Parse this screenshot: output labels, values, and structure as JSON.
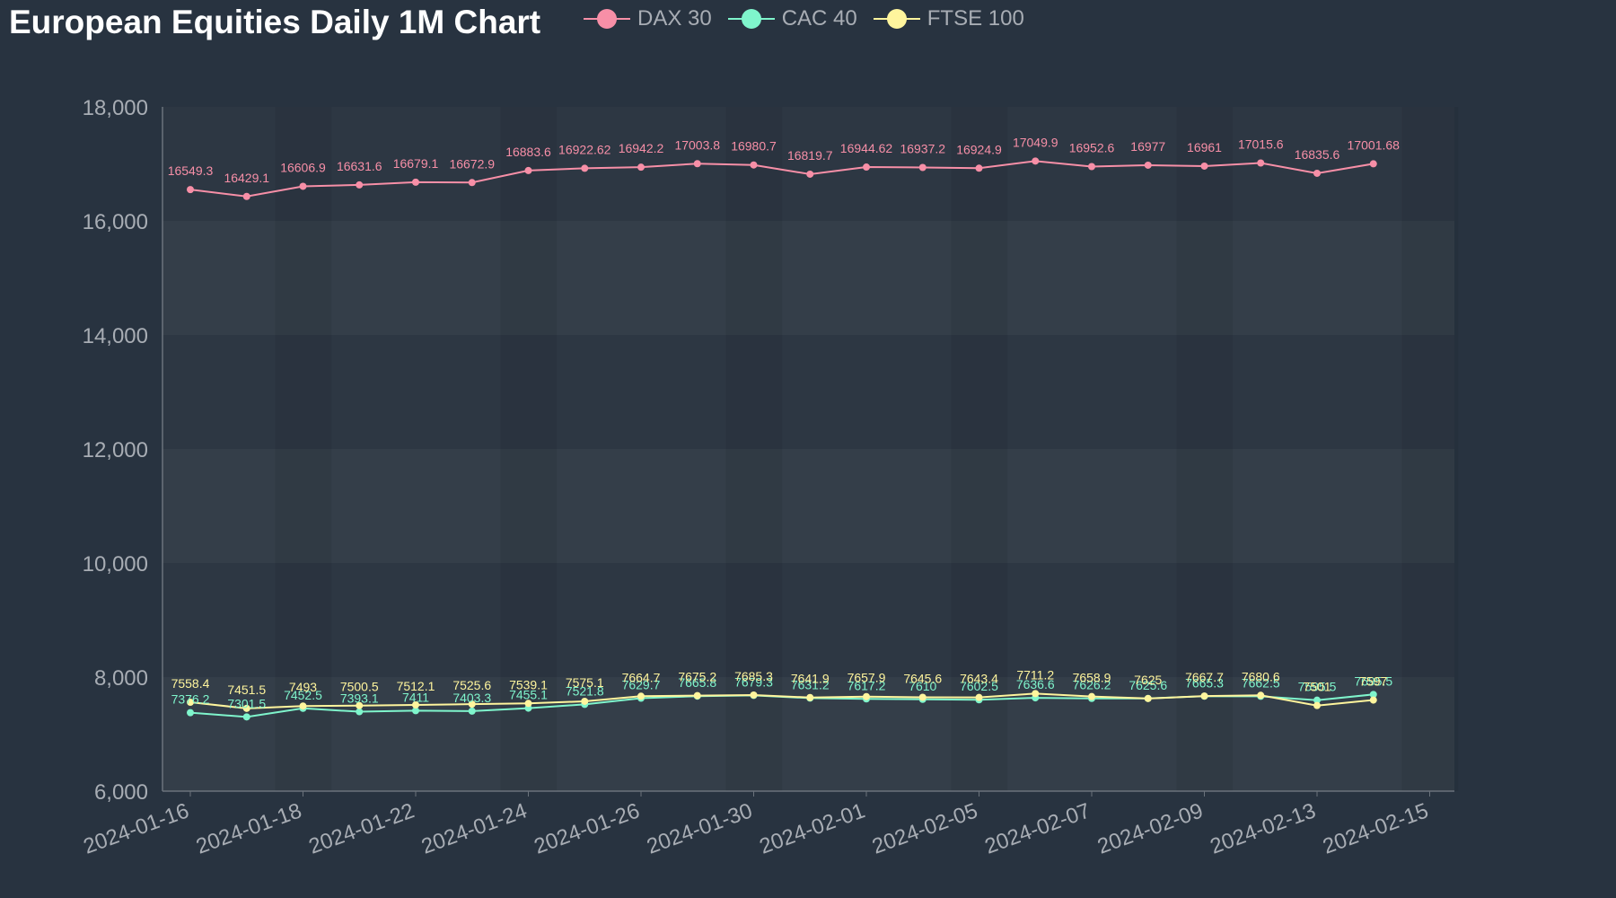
{
  "chart_data": {
    "type": "line",
    "title": "European Equities Daily 1M Chart",
    "xlabel": "",
    "ylabel": "",
    "ylim": [
      6000,
      18000
    ],
    "y_ticks": [
      6000,
      8000,
      10000,
      12000,
      14000,
      16000,
      18000
    ],
    "y_tick_labels": [
      "6,000",
      "8,000",
      "10,000",
      "12,000",
      "14,000",
      "16,000",
      "18,000"
    ],
    "x_tick_labels": [
      "2024-01-16",
      "2024-01-18",
      "2024-01-22",
      "2024-01-24",
      "2024-01-26",
      "2024-01-30",
      "2024-02-01",
      "2024-02-05",
      "2024-02-07",
      "2024-02-09",
      "2024-02-13",
      "2024-02-15"
    ],
    "x": [
      "2024-01-16",
      "2024-01-17",
      "2024-01-18",
      "2024-01-19",
      "2024-01-22",
      "2024-01-23",
      "2024-01-24",
      "2024-01-25",
      "2024-01-26",
      "2024-01-29",
      "2024-01-30",
      "2024-01-31",
      "2024-02-01",
      "2024-02-02",
      "2024-02-05",
      "2024-02-06",
      "2024-02-07",
      "2024-02-08",
      "2024-02-09",
      "2024-02-12",
      "2024-02-13",
      "2024-02-14"
    ],
    "legend_position": "top",
    "grid": true,
    "series": [
      {
        "name": "DAX 30",
        "color": "#f78fa7",
        "values": [
          16549.3,
          16429.1,
          16606.9,
          16631.6,
          16679.1,
          16672.9,
          16883.6,
          16922.62,
          16942.2,
          17003.8,
          16980.7,
          16819.7,
          16944.62,
          16937.2,
          16924.9,
          17049.9,
          16952.6,
          16977,
          16961,
          17015.6,
          16835.6,
          17001.68
        ]
      },
      {
        "name": "CAC 40",
        "color": "#7ff5cc",
        "values": [
          7376.2,
          7301.5,
          7452.5,
          7393.1,
          7411,
          7403.3,
          7455.1,
          7521.8,
          7629.7,
          7665.8,
          7679.3,
          7631.2,
          7617.2,
          7610,
          7602.5,
          7636.6,
          7626.2,
          7625.6,
          7665.3,
          7662.5,
          7595.5,
          7695.5
        ]
      },
      {
        "name": "FTSE 100",
        "color": "#fff59d",
        "values": [
          7558.4,
          7451.5,
          7493,
          7500.5,
          7512.1,
          7525.6,
          7539.1,
          7575.1,
          7664.7,
          7675.2,
          7685.3,
          7641.9,
          7657.9,
          7645.6,
          7643.4,
          7711.2,
          7658.9,
          7625.0,
          7667.7,
          7680.6,
          7501,
          7597
        ]
      }
    ]
  }
}
